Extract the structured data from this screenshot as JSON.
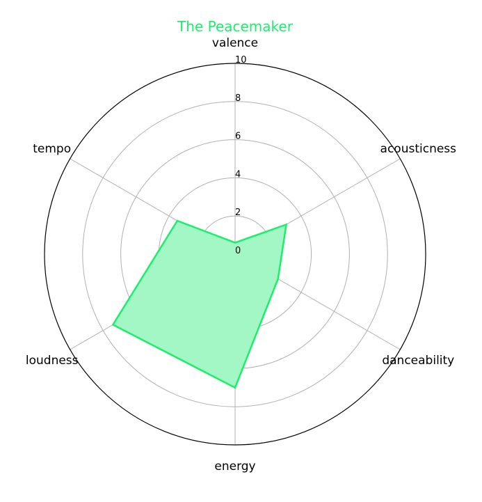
{
  "chart_data": {
    "type": "radar",
    "title": "The Peacemaker",
    "categories": [
      "valence",
      "acousticness",
      "danceability",
      "energy",
      "loudness",
      "tempo"
    ],
    "series": [
      {
        "values": [
          0.6,
          3.1,
          2.6,
          7.0,
          7.4,
          3.5
        ]
      }
    ],
    "rlim": [
      0,
      10
    ],
    "rticks": [
      "0",
      "2",
      "4",
      "6",
      "8",
      "10"
    ],
    "grid": true,
    "colors": {
      "line": "#1aef6a",
      "fill": "#a3f7c4",
      "title": "#1aef6a",
      "grid": "#b0b0b0",
      "frame": "#000000"
    }
  }
}
